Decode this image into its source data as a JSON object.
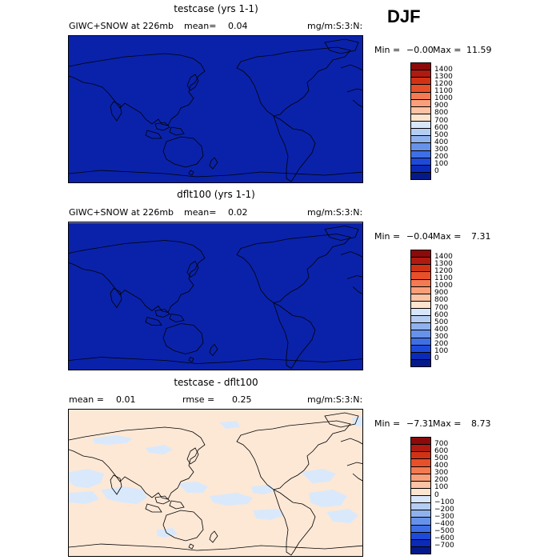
{
  "season": "DJF",
  "colors": {
    "field_fill": "#0a22aa",
    "diff_positive_fill": "#fde8d6",
    "diff_negative_fill": "#d9e9fb"
  },
  "panels": [
    {
      "title": "testcase (yrs 1-1)",
      "left_label": "GIWC+SNOW at 226mb",
      "mean_text": "mean=",
      "mean_value": "0.04",
      "units": "mg/m:S:3:N:",
      "min_text": "Min =",
      "min_value": "−0.00",
      "max_text": "Max =",
      "max_value": "11.59",
      "colorbar_ticks": [
        "1400",
        "1300",
        "1200",
        "1100",
        "1000",
        "900",
        "800",
        "700",
        "600",
        "500",
        "400",
        "300",
        "200",
        "100",
        "0"
      ],
      "colorbar_colors": [
        "#8b0a0a",
        "#b01a10",
        "#d23214",
        "#e8502a",
        "#f47a52",
        "#f9a07a",
        "#fcc3a4",
        "#fde4cf",
        "#d7e6f8",
        "#b5cdf3",
        "#8fb2ee",
        "#6792ea",
        "#3f6fe6",
        "#1e4ad9",
        "#0a2ab8",
        "#051a8a"
      ]
    },
    {
      "title": "dflt100 (yrs 1-1)",
      "left_label": "GIWC+SNOW at 226mb",
      "mean_text": "mean=",
      "mean_value": "0.02",
      "units": "mg/m:S:3:N:",
      "min_text": "Min =",
      "min_value": "−0.04",
      "max_text": "Max =",
      "max_value": "7.31",
      "colorbar_ticks": [
        "1400",
        "1300",
        "1200",
        "1100",
        "1000",
        "900",
        "800",
        "700",
        "600",
        "500",
        "400",
        "300",
        "200",
        "100",
        "0"
      ],
      "colorbar_colors": [
        "#8b0a0a",
        "#b01a10",
        "#d23214",
        "#e8502a",
        "#f47a52",
        "#f9a07a",
        "#fcc3a4",
        "#fde4cf",
        "#d7e6f8",
        "#b5cdf3",
        "#8fb2ee",
        "#6792ea",
        "#3f6fe6",
        "#1e4ad9",
        "#0a2ab8",
        "#051a8a"
      ]
    },
    {
      "title": "testcase - dflt100",
      "mean_text": "mean =",
      "mean_value": "0.01",
      "rmse_text": "rmse =",
      "rmse_value": "0.25",
      "units": "mg/m:S:3:N:",
      "min_text": "Min =",
      "min_value": "−7.31",
      "max_text": "Max =",
      "max_value": "8.73",
      "colorbar_ticks": [
        "700",
        "600",
        "500",
        "400",
        "300",
        "200",
        "100",
        "0",
        "−100",
        "−200",
        "−300",
        "−400",
        "−500",
        "−600",
        "−700"
      ],
      "colorbar_colors": [
        "#8b0a0a",
        "#b01a10",
        "#d23214",
        "#e8502a",
        "#f47a52",
        "#f9a07a",
        "#fcc3a4",
        "#fde4cf",
        "#d7e6f8",
        "#b5cdf3",
        "#8fb2ee",
        "#6792ea",
        "#3f6fe6",
        "#1e4ad9",
        "#0a2ab8",
        "#051a8a"
      ]
    }
  ],
  "chart_data": [
    {
      "type": "heatmap",
      "title": "testcase (yrs 1-1)",
      "field": "GIWC+SNOW at 226mb",
      "units": "mg/m:S:3:N:",
      "mean": 0.04,
      "min": -0.0,
      "max": 11.59,
      "contour_levels": [
        0,
        100,
        200,
        300,
        400,
        500,
        600,
        700,
        800,
        900,
        1000,
        1100,
        1200,
        1300,
        1400
      ]
    },
    {
      "type": "heatmap",
      "title": "dflt100 (yrs 1-1)",
      "field": "GIWC+SNOW at 226mb",
      "units": "mg/m:S:3:N:",
      "mean": 0.02,
      "min": -0.04,
      "max": 7.31,
      "contour_levels": [
        0,
        100,
        200,
        300,
        400,
        500,
        600,
        700,
        800,
        900,
        1000,
        1100,
        1200,
        1300,
        1400
      ]
    },
    {
      "type": "heatmap",
      "title": "testcase - dflt100",
      "units": "mg/m:S:3:N:",
      "mean": 0.01,
      "rmse": 0.25,
      "min": -7.31,
      "max": 8.73,
      "contour_levels": [
        -700,
        -600,
        -500,
        -400,
        -300,
        -200,
        -100,
        0,
        100,
        200,
        300,
        400,
        500,
        600,
        700
      ]
    }
  ]
}
